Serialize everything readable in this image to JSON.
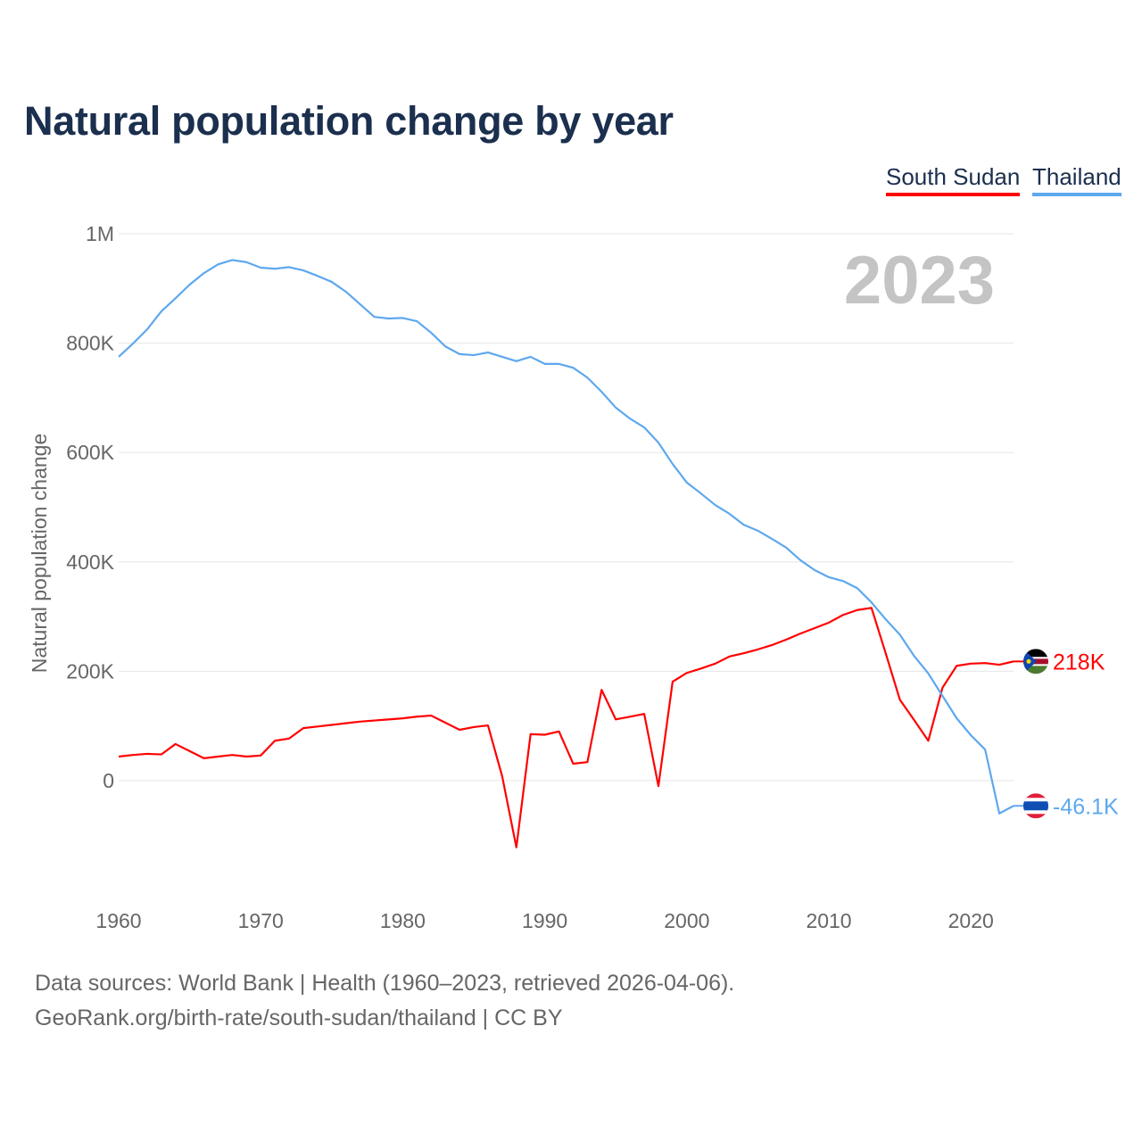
{
  "chart_data": {
    "type": "line",
    "title": "Natural population change by year",
    "ylabel": "Natural population change",
    "xlabel": "",
    "ylim": [
      -150000,
      1000000
    ],
    "xlim": [
      1960,
      2023
    ],
    "yticks": [
      0,
      200000,
      400000,
      600000,
      800000,
      1000000
    ],
    "ytick_labels": [
      "0",
      "200K",
      "400K",
      "600K",
      "800K",
      "1M"
    ],
    "xticks": [
      1960,
      1970,
      1980,
      1990,
      2000,
      2010,
      2020
    ],
    "xtick_labels": [
      "1960",
      "1970",
      "1980",
      "1990",
      "2000",
      "2010",
      "2020"
    ],
    "grid": true,
    "legend_position": "top-right",
    "year_watermark": "2023",
    "x": [
      1960,
      1961,
      1962,
      1963,
      1964,
      1965,
      1966,
      1967,
      1968,
      1969,
      1970,
      1971,
      1972,
      1973,
      1974,
      1975,
      1976,
      1977,
      1978,
      1979,
      1980,
      1981,
      1982,
      1983,
      1984,
      1985,
      1986,
      1987,
      1988,
      1989,
      1990,
      1991,
      1992,
      1993,
      1994,
      1995,
      1996,
      1997,
      1998,
      1999,
      2000,
      2001,
      2002,
      2003,
      2004,
      2005,
      2006,
      2007,
      2008,
      2009,
      2010,
      2011,
      2012,
      2013,
      2014,
      2015,
      2016,
      2017,
      2018,
      2019,
      2020,
      2021,
      2022,
      2023
    ],
    "series": [
      {
        "name": "South Sudan",
        "color": "#ff0000",
        "end_label": "218K",
        "values": [
          44000,
          47000,
          49000,
          48000,
          67000,
          54000,
          41000,
          44000,
          47000,
          44000,
          46000,
          73000,
          77000,
          96000,
          99000,
          102000,
          105000,
          108000,
          110000,
          112000,
          114000,
          117000,
          119000,
          106000,
          93000,
          98000,
          101000,
          8000,
          -122000,
          85000,
          84000,
          90000,
          31000,
          34000,
          166000,
          112000,
          117000,
          122000,
          -10000,
          181000,
          197000,
          205000,
          214000,
          227000,
          233000,
          240000,
          248000,
          258000,
          269000,
          279000,
          289000,
          303000,
          312000,
          316000,
          233000,
          148000,
          111000,
          73000,
          170000,
          210000,
          214000,
          215000,
          212000,
          218000
        ]
      },
      {
        "name": "Thailand",
        "color": "#5ea8ee",
        "end_label": "-46.1K",
        "values": [
          775000,
          799000,
          825000,
          858000,
          882000,
          907000,
          928000,
          944000,
          952000,
          948000,
          938000,
          936000,
          939000,
          933000,
          923000,
          912000,
          894000,
          871000,
          848000,
          845000,
          846000,
          840000,
          819000,
          794000,
          780000,
          778000,
          783000,
          775000,
          767000,
          775000,
          762000,
          762000,
          755000,
          737000,
          711000,
          682000,
          662000,
          646000,
          618000,
          579000,
          545000,
          525000,
          504000,
          488000,
          468000,
          457000,
          442000,
          426000,
          403000,
          385000,
          372000,
          365000,
          352000,
          326000,
          295000,
          267000,
          228000,
          196000,
          155000,
          114000,
          83000,
          57000,
          -60000,
          -46100
        ]
      }
    ]
  },
  "footer": {
    "line1": "Data sources: World Bank | Health (1960–2023, retrieved 2026-04-06).",
    "line2": "GeoRank.org/birth-rate/south-sudan/thailand | CC BY"
  }
}
